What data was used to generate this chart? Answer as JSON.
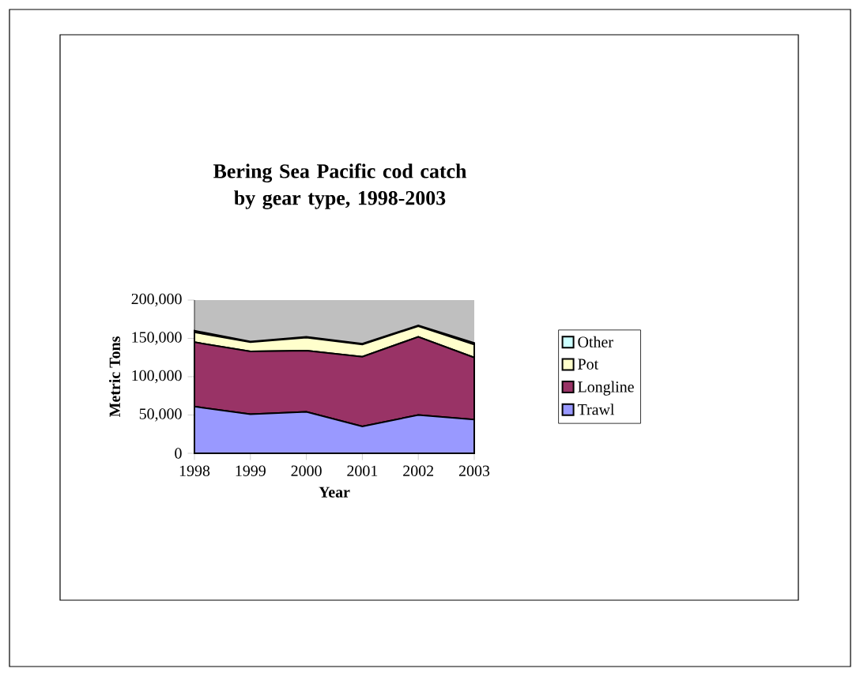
{
  "chart_data": {
    "type": "area",
    "stacked": true,
    "title": "Bering Sea Pacific cod catch by gear type, 1998-2003",
    "xlabel": "Year",
    "ylabel": "Metric Tons",
    "categories": [
      "1998",
      "1999",
      "2000",
      "2001",
      "2002",
      "2003"
    ],
    "ylim": [
      0,
      200000
    ],
    "yticks": [
      {
        "value": 0,
        "label": "0"
      },
      {
        "value": 50000,
        "label": "50,000"
      },
      {
        "value": 100000,
        "label": "100,000"
      },
      {
        "value": 150000,
        "label": "150,000"
      },
      {
        "value": 200000,
        "label": "200,000"
      }
    ],
    "legend": "right",
    "series": [
      {
        "name": "Trawl",
        "color": "#9999ff",
        "values": [
          61000,
          51000,
          54000,
          35000,
          50000,
          44000
        ]
      },
      {
        "name": "Longline",
        "color": "#993366",
        "values": [
          84000,
          82000,
          80000,
          91000,
          102000,
          81000
        ]
      },
      {
        "name": "Pot",
        "color": "#ffffcc",
        "values": [
          13000,
          12000,
          17000,
          16000,
          14000,
          17000
        ]
      },
      {
        "name": "Other",
        "color": "#ccffff",
        "values": [
          2000,
          1000,
          1000,
          1000,
          1000,
          2000
        ]
      }
    ]
  }
}
